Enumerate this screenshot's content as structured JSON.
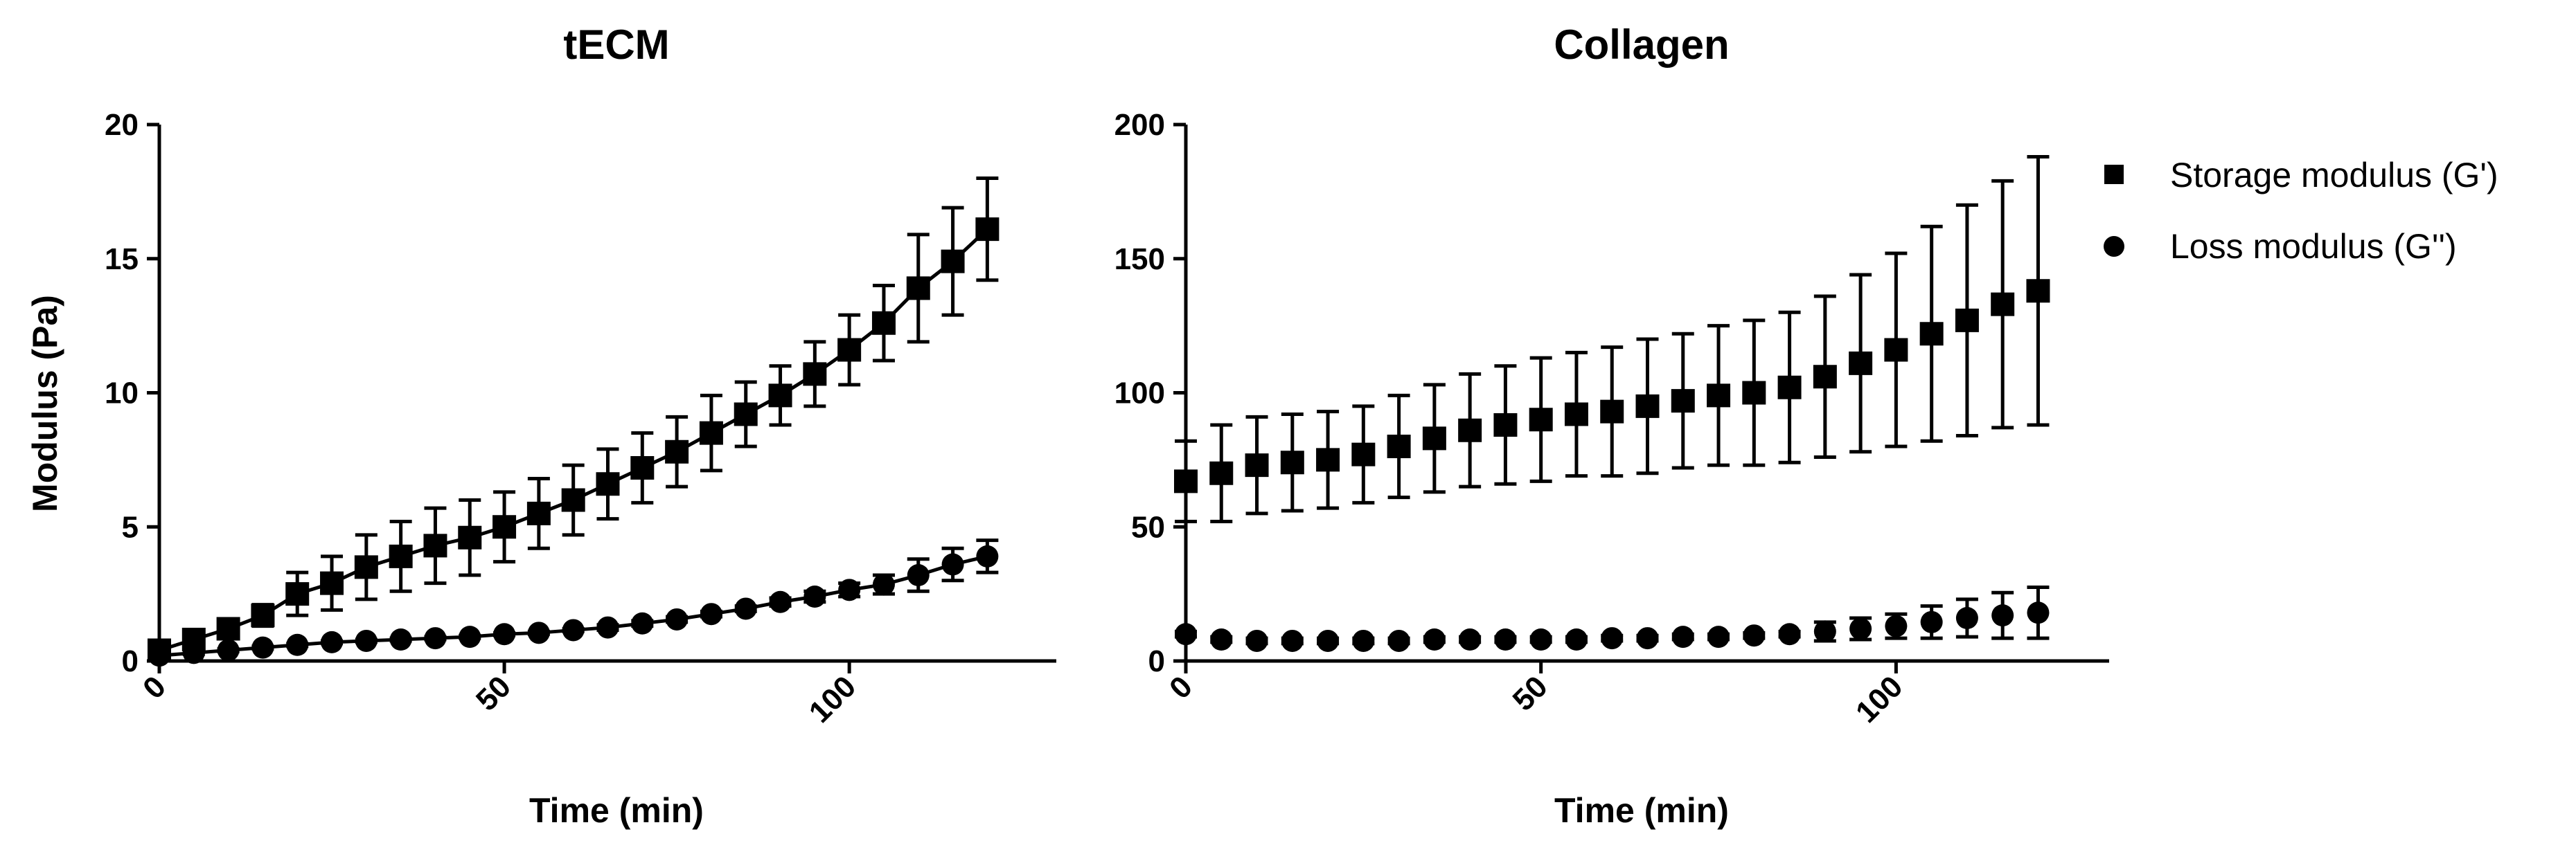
{
  "chart_data": [
    {
      "type": "scatter",
      "title": "tECM",
      "xlabel": "Time (min)",
      "ylabel": "Modulus (Pa)",
      "xlim": [
        0,
        130
      ],
      "ylim": [
        0,
        20
      ],
      "xticks": [
        0,
        50,
        100
      ],
      "yticks": [
        0,
        5,
        10,
        15,
        20
      ],
      "connect_points": true,
      "x": [
        0,
        5,
        10,
        15,
        20,
        25,
        30,
        35,
        40,
        45,
        50,
        55,
        60,
        65,
        70,
        75,
        80,
        85,
        90,
        95,
        100,
        105,
        110,
        115,
        120
      ],
      "series": [
        {
          "name": "Storage modulus (G')",
          "marker": "square",
          "values": [
            0.4,
            0.8,
            1.2,
            1.7,
            2.5,
            2.9,
            3.5,
            3.9,
            4.3,
            4.6,
            5.0,
            5.5,
            6.0,
            6.6,
            7.2,
            7.8,
            8.5,
            9.2,
            9.9,
            10.7,
            11.6,
            12.6,
            13.9,
            14.9,
            16.1
          ],
          "errors": [
            0.2,
            0.3,
            0.3,
            0.4,
            0.8,
            1.0,
            1.2,
            1.3,
            1.4,
            1.4,
            1.3,
            1.3,
            1.3,
            1.3,
            1.3,
            1.3,
            1.4,
            1.2,
            1.1,
            1.2,
            1.3,
            1.4,
            2.0,
            2.0,
            1.9
          ]
        },
        {
          "name": "Loss modulus (G'')",
          "marker": "circle",
          "values": [
            0.2,
            0.3,
            0.4,
            0.5,
            0.6,
            0.7,
            0.75,
            0.8,
            0.85,
            0.9,
            1.0,
            1.05,
            1.15,
            1.25,
            1.4,
            1.55,
            1.75,
            1.95,
            2.2,
            2.4,
            2.65,
            2.85,
            3.2,
            3.6,
            3.9
          ],
          "errors": [
            0.05,
            0.05,
            0.05,
            0.05,
            0.05,
            0.05,
            0.05,
            0.05,
            0.05,
            0.05,
            0.05,
            0.05,
            0.05,
            0.1,
            0.1,
            0.1,
            0.1,
            0.1,
            0.15,
            0.2,
            0.25,
            0.35,
            0.6,
            0.6,
            0.6
          ]
        }
      ]
    },
    {
      "type": "scatter",
      "title": "Collagen",
      "xlabel": "Time (min)",
      "ylabel": "",
      "xlim": [
        0,
        130
      ],
      "ylim": [
        0,
        200
      ],
      "xticks": [
        0,
        50,
        100
      ],
      "yticks": [
        0,
        50,
        100,
        150,
        200
      ],
      "connect_points": false,
      "x": [
        0,
        5,
        10,
        15,
        20,
        25,
        30,
        35,
        40,
        45,
        50,
        55,
        60,
        65,
        70,
        75,
        80,
        85,
        90,
        95,
        100,
        105,
        110,
        115,
        120
      ],
      "series": [
        {
          "name": "Storage modulus (G')",
          "marker": "square",
          "values": [
            67,
            70,
            73,
            74,
            75,
            77,
            80,
            83,
            86,
            88,
            90,
            92,
            93,
            95,
            97,
            99,
            100,
            102,
            106,
            111,
            116,
            122,
            127,
            133,
            138
          ],
          "errors": [
            15,
            18,
            18,
            18,
            18,
            18,
            19,
            20,
            21,
            22,
            23,
            23,
            24,
            25,
            25,
            26,
            27,
            28,
            30,
            33,
            36,
            40,
            43,
            46,
            50
          ]
        },
        {
          "name": "Loss modulus (G'')",
          "marker": "circle",
          "values": [
            10,
            8,
            7.5,
            7.5,
            7.5,
            7.5,
            7.5,
            8,
            8,
            8,
            8,
            8,
            8.5,
            8.5,
            9,
            9,
            9.5,
            10,
            11,
            12,
            13,
            14.5,
            16,
            17,
            18
          ],
          "errors": [
            1,
            1,
            1,
            1,
            1,
            1,
            1,
            1,
            1,
            1,
            1,
            1,
            1,
            1,
            1,
            1,
            1,
            1,
            3.5,
            4,
            4.5,
            6,
            7,
            8.5,
            9.5
          ]
        }
      ]
    }
  ],
  "legend": {
    "items": [
      {
        "label": "Storage modulus (G')",
        "marker": "square"
      },
      {
        "label": "Loss modulus (G'')",
        "marker": "circle"
      }
    ]
  }
}
